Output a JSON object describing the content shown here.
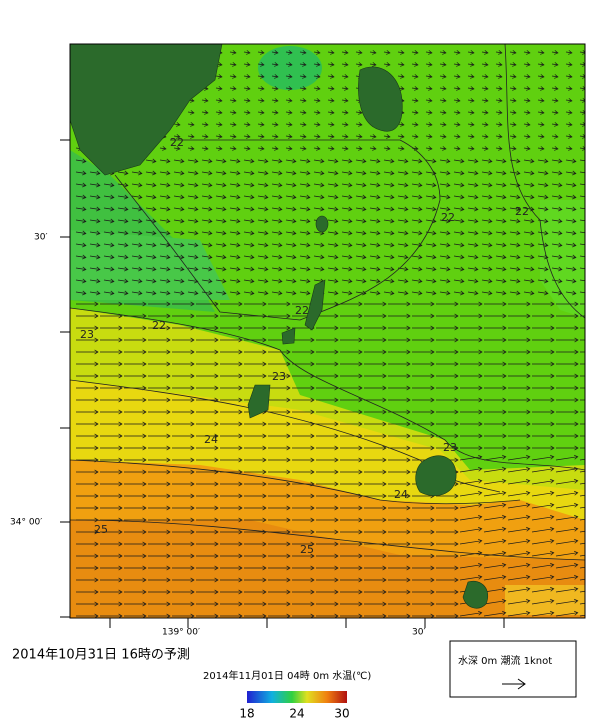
{
  "map": {
    "lat_labels": [
      "30′",
      "34° 00′"
    ],
    "lon_labels": [
      "139° 00′",
      "30′"
    ],
    "contour_labels": [
      "22",
      "22",
      "22",
      "22",
      "22",
      "23",
      "23",
      "23",
      "24",
      "24",
      "25",
      "25"
    ]
  },
  "caption": {
    "forecast_time": "2014年10月31日  16時の予測",
    "valid_time": "2014年11月01日 04時 0m 水温(℃)"
  },
  "colorbar": {
    "ticks": [
      18,
      24,
      30
    ]
  },
  "legend": {
    "label": "水深 0m 潮流 1knot"
  }
}
